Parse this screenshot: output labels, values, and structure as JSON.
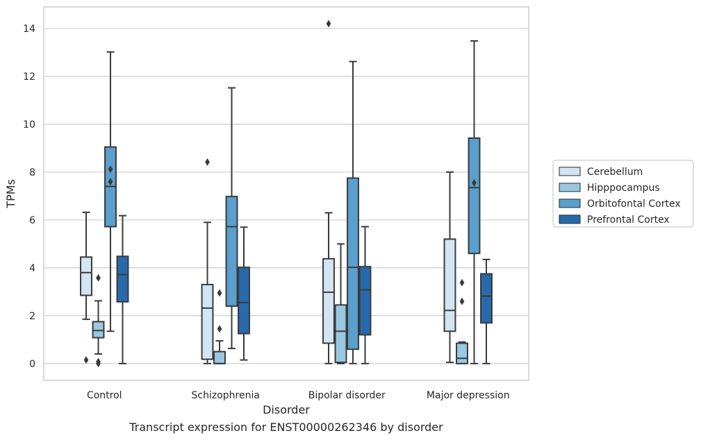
{
  "chart_data": {
    "type": "box",
    "xlabel": "Disorder",
    "ylabel": "TPMs",
    "caption": "Transcript expression for ENST00000262346 by disorder",
    "categories": [
      "Control",
      "Schizophrenia",
      "Bipolar disorder",
      "Major depression"
    ],
    "ylim": [
      -0.7,
      14.9
    ],
    "yticks": [
      0,
      2,
      4,
      6,
      8,
      10,
      12,
      14
    ],
    "grid": true,
    "legend_position": "right",
    "series": [
      {
        "name": "Cerebellum",
        "color": "#d3e4f3",
        "boxes": [
          {
            "whislo": 1.85,
            "q1": 2.85,
            "med": 3.8,
            "q3": 4.45,
            "whishi": 6.32,
            "fliers": [
              0.15
            ]
          },
          {
            "whislo": 0.0,
            "q1": 0.18,
            "med": 2.32,
            "q3": 3.3,
            "whishi": 5.9,
            "fliers": [
              8.42
            ]
          },
          {
            "whislo": 0.0,
            "q1": 0.85,
            "med": 2.98,
            "q3": 4.38,
            "whishi": 6.3,
            "fliers": [
              14.2
            ]
          },
          {
            "whislo": 0.05,
            "q1": 1.35,
            "med": 2.22,
            "q3": 5.2,
            "whishi": 8.0,
            "fliers": []
          }
        ]
      },
      {
        "name": "Hipppocampus",
        "color": "#9ac8e0",
        "boxes": [
          {
            "whislo": 0.4,
            "q1": 1.08,
            "med": 1.38,
            "q3": 1.75,
            "whishi": 2.62,
            "fliers": [
              3.58,
              0.08,
              0.0
            ]
          },
          {
            "whislo": 0.0,
            "q1": 0.0,
            "med": 0.0,
            "q3": 0.5,
            "whishi": 0.95,
            "fliers": [
              2.95,
              1.45
            ]
          },
          {
            "whislo": 0.0,
            "q1": 0.05,
            "med": 1.35,
            "q3": 2.45,
            "whishi": 5.0,
            "fliers": []
          },
          {
            "whislo": 0.0,
            "q1": 0.0,
            "med": 0.22,
            "q3": 0.85,
            "whishi": 0.9,
            "fliers": [
              3.38,
              2.6
            ]
          }
        ]
      },
      {
        "name": "Orbitofontal Cortex",
        "color": "#5a9fcd",
        "boxes": [
          {
            "whislo": 1.35,
            "q1": 5.72,
            "med": 7.4,
            "q3": 9.05,
            "whishi": 13.02,
            "fliers": [
              8.12,
              7.6
            ]
          },
          {
            "whislo": 0.63,
            "q1": 2.4,
            "med": 5.72,
            "q3": 6.98,
            "whishi": 11.52,
            "fliers": []
          },
          {
            "whislo": 0.0,
            "q1": 0.6,
            "med": 4.02,
            "q3": 7.75,
            "whishi": 12.62,
            "fliers": []
          },
          {
            "whislo": 0.0,
            "q1": 4.6,
            "med": 7.35,
            "q3": 9.42,
            "whishi": 13.48,
            "fliers": [
              7.55
            ]
          }
        ]
      },
      {
        "name": "Prefrontal Cortex",
        "color": "#2869ab",
        "boxes": [
          {
            "whislo": 0.0,
            "q1": 2.58,
            "med": 3.72,
            "q3": 4.48,
            "whishi": 6.18,
            "fliers": []
          },
          {
            "whislo": 0.15,
            "q1": 1.25,
            "med": 2.55,
            "q3": 4.02,
            "whishi": 5.7,
            "fliers": []
          },
          {
            "whislo": 0.0,
            "q1": 1.2,
            "med": 3.08,
            "q3": 4.05,
            "whishi": 5.72,
            "fliers": []
          },
          {
            "whislo": 0.0,
            "q1": 1.7,
            "med": 2.82,
            "q3": 3.75,
            "whishi": 4.35,
            "fliers": []
          }
        ]
      }
    ]
  }
}
